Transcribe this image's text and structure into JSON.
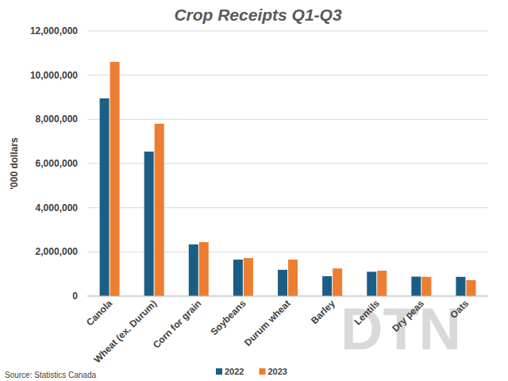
{
  "chart_data": {
    "type": "bar",
    "title": "Crop Receipts Q1-Q3",
    "y_label": "'000 dollars",
    "source": "Source: Statistics Canada",
    "watermark": "DTN",
    "categories": [
      "Canola",
      "Wheat (ex. Durum)",
      "Corn for grain",
      "Soybeans",
      "Durum wheat",
      "Barley",
      "Lentils",
      "Dry peas",
      "Oats"
    ],
    "series": [
      {
        "name": "2022",
        "color": "#1b5e85",
        "values": [
          8950000,
          6540000,
          2340000,
          1650000,
          1190000,
          900000,
          1100000,
          880000,
          870000
        ]
      },
      {
        "name": "2023",
        "color": "#ed7d31",
        "values": [
          10600000,
          7800000,
          2440000,
          1720000,
          1650000,
          1250000,
          1150000,
          870000,
          720000
        ]
      }
    ],
    "ylim": [
      0,
      12000000
    ],
    "yticks": [
      0,
      {
        "value": 2000000,
        "label": "2,000,000"
      },
      {
        "value": 4000000,
        "label": "4,000,000"
      },
      {
        "value": 6000000,
        "label": "6,000,000"
      },
      {
        "value": 8000000,
        "label": "8,000,000"
      },
      {
        "value": 10000000,
        "label": "10,000,000"
      },
      {
        "value": 12000000,
        "label": "12,000,000"
      }
    ],
    "grid": true,
    "legend": "bottom"
  }
}
